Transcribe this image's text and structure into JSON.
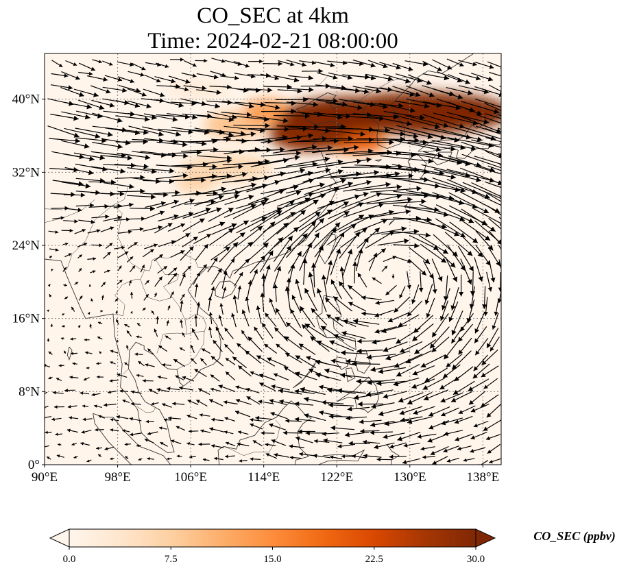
{
  "title": {
    "line1": "CO_SEC at 4km",
    "line2": "Time: 2024-02-21 08:00:00"
  },
  "map": {
    "lon_range": [
      90,
      140
    ],
    "lat_range": [
      0,
      45
    ],
    "lon_ticks": [
      {
        "value": 90,
        "label": "90°E"
      },
      {
        "value": 98,
        "label": "98°E"
      },
      {
        "value": 106,
        "label": "106°E"
      },
      {
        "value": 114,
        "label": "114°E"
      },
      {
        "value": 122,
        "label": "122°E"
      },
      {
        "value": 130,
        "label": "130°E"
      },
      {
        "value": 138,
        "label": "138°E"
      }
    ],
    "lat_ticks": [
      {
        "value": 0,
        "label": "0°"
      },
      {
        "value": 8,
        "label": "8°N"
      },
      {
        "value": 16,
        "label": "16°N"
      },
      {
        "value": 24,
        "label": "24°N"
      },
      {
        "value": 32,
        "label": "32°N"
      },
      {
        "value": 40,
        "label": "40°N"
      }
    ],
    "gridlines": true,
    "colors": {
      "background": "#fff5eb",
      "coast": "#333333",
      "arrow": "#000000",
      "grid": "#808080"
    }
  },
  "colorbar": {
    "range": [
      0,
      30
    ],
    "ticks": [
      {
        "value": 0,
        "label": "0.0"
      },
      {
        "value": 7.5,
        "label": "7.5"
      },
      {
        "value": 15,
        "label": "15.0"
      },
      {
        "value": 22.5,
        "label": "22.5"
      },
      {
        "value": 30,
        "label": "30.0"
      }
    ],
    "label": "CO_SEC (ppbv)",
    "colormap": [
      "#fff5eb",
      "#fee6ce",
      "#fdd0a2",
      "#fdae6b",
      "#fd8d3c",
      "#f16913",
      "#d94801",
      "#a63603",
      "#7f2704"
    ],
    "extend": "both"
  },
  "plumes": [
    {
      "lon": 131,
      "lat": 38.5,
      "rlon": 10,
      "rlat": 2.3,
      "value": 30
    },
    {
      "lon": 124,
      "lat": 38.3,
      "rlon": 8,
      "rlat": 2.0,
      "value": 30
    },
    {
      "lon": 119,
      "lat": 36.3,
      "rlon": 4.5,
      "rlat": 2.0,
      "value": 29
    },
    {
      "lon": 124,
      "lat": 35.3,
      "rlon": 3.5,
      "rlat": 1.2,
      "value": 20
    },
    {
      "lon": 114.5,
      "lat": 38.6,
      "rlon": 2.8,
      "rlat": 1.4,
      "value": 13
    },
    {
      "lon": 111,
      "lat": 37.2,
      "rlon": 3.5,
      "rlat": 1.4,
      "value": 9
    },
    {
      "lon": 110,
      "lat": 32.5,
      "rlon": 5,
      "rlat": 1.5,
      "value": 6
    },
    {
      "lon": 106.5,
      "lat": 30.8,
      "rlon": 2.2,
      "rlat": 1.0,
      "value": 7
    },
    {
      "lon": 107,
      "lat": 41.0,
      "rlon": 3.5,
      "rlat": 0.8,
      "value": 3
    }
  ]
}
